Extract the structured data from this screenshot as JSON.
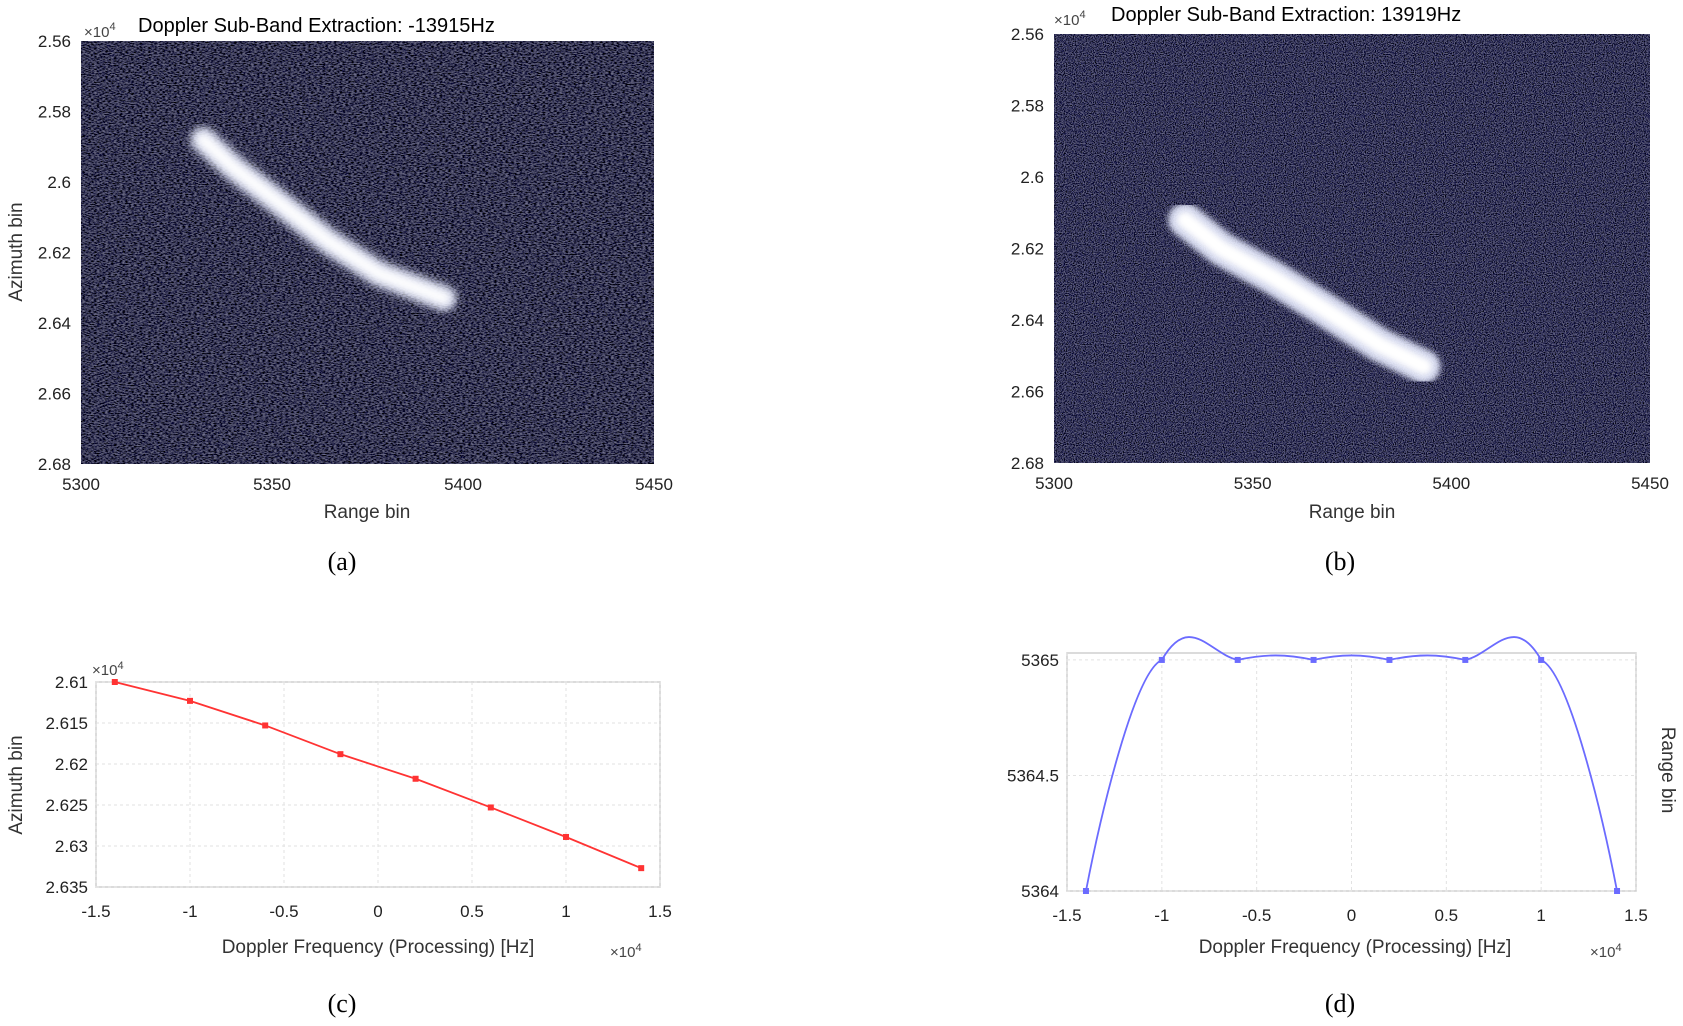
{
  "chart_data": [
    {
      "id": "a",
      "type": "heatmap",
      "title": "Doppler Sub-Band Extraction: -13915Hz",
      "xlabel": "Range bin",
      "ylabel": "Azimuth bin",
      "exponent_label": "×10",
      "exponent_power": "4",
      "xlim": [
        5300,
        5450
      ],
      "ylim": [
        2.56,
        2.68
      ],
      "xticks": [
        "5300",
        "5350",
        "5400",
        "5450"
      ],
      "yticks": [
        "2.56",
        "2.58",
        "2.6",
        "2.62",
        "2.64",
        "2.66",
        "2.68"
      ],
      "bright_region": [
        [
          5332,
          2.588
        ],
        [
          5340,
          2.596
        ],
        [
          5352,
          2.606
        ],
        [
          5365,
          2.617
        ],
        [
          5378,
          2.626
        ],
        [
          5395,
          2.633
        ]
      ],
      "caption": "(a)"
    },
    {
      "id": "b",
      "type": "heatmap",
      "title": "Doppler Sub-Band Extraction: 13919Hz",
      "xlabel": "Range bin",
      "ylabel": "",
      "exponent_label": "×10",
      "exponent_power": "4",
      "xlim": [
        5300,
        5450
      ],
      "ylim": [
        2.56,
        2.68
      ],
      "xticks": [
        "5300",
        "5350",
        "5400",
        "5450"
      ],
      "yticks": [
        "2.56",
        "2.58",
        "2.6",
        "2.62",
        "2.64",
        "2.66",
        "2.68"
      ],
      "bright_region": [
        [
          5333,
          2.612
        ],
        [
          5342,
          2.62
        ],
        [
          5355,
          2.628
        ],
        [
          5368,
          2.637
        ],
        [
          5382,
          2.647
        ],
        [
          5393,
          2.653
        ]
      ],
      "caption": "(b)"
    },
    {
      "id": "c",
      "type": "line",
      "title": "",
      "xlabel": "Doppler Frequency (Processing) [Hz]",
      "ylabel": "Azimuth bin",
      "x_exponent": "×10",
      "x_exponent_power": "4",
      "y_exponent": "×10",
      "y_exponent_power": "4",
      "xlim": [
        -1.5,
        1.5
      ],
      "ylim": [
        2.61,
        2.635
      ],
      "y_reversed": true,
      "grid": true,
      "color": "#ff3333",
      "xticks": [
        "-1.5",
        "-1",
        "-0.5",
        "0",
        "0.5",
        "1",
        "1.5"
      ],
      "yticks": [
        "2.61",
        "2.615",
        "2.62",
        "2.625",
        "2.63",
        "2.635"
      ],
      "series": [
        {
          "x": [
            -1.4,
            -1.0,
            -0.6,
            -0.2,
            0.2,
            0.6,
            1.0,
            1.4
          ],
          "y": [
            2.61,
            2.6123,
            2.6153,
            2.6188,
            2.6218,
            2.6253,
            2.6289,
            2.6327
          ]
        }
      ],
      "caption": "(c)"
    },
    {
      "id": "d",
      "type": "line",
      "title": "",
      "xlabel": "Doppler Frequency (Processing) [Hz]",
      "ylabel": "Range bin",
      "x_exponent": "×10",
      "x_exponent_power": "4",
      "xlim": [
        -1.5,
        1.5
      ],
      "ylim": [
        5364,
        5365.03
      ],
      "grid": true,
      "color": "#6b6bff",
      "xticks": [
        "-1.5",
        "-1",
        "-0.5",
        "0",
        "0.5",
        "1",
        "1.5"
      ],
      "yticks": [
        "5364",
        "5364.5",
        "5365"
      ],
      "series": [
        {
          "x": [
            -1.4,
            -1.0,
            -0.6,
            -0.2,
            0.2,
            0.6,
            1.0,
            1.4
          ],
          "y": [
            5364,
            5365,
            5365,
            5365,
            5365,
            5365,
            5365,
            5364
          ]
        }
      ],
      "caption": "(d)"
    }
  ]
}
